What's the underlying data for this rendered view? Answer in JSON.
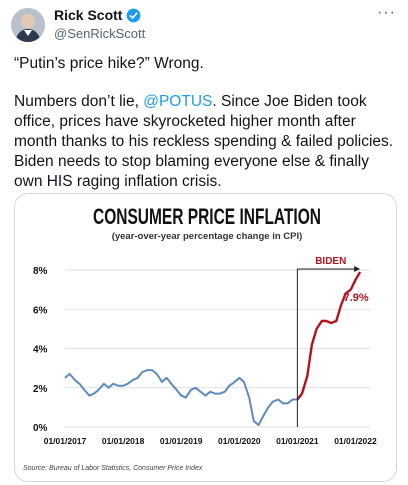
{
  "tweet": {
    "author_name": "Rick Scott",
    "handle": "@SenRickScott",
    "line1": "“Putin’s price hike?” Wrong.",
    "body_before_mention": "Numbers don’t lie, ",
    "mention": "@POTUS",
    "body_after_mention": ". Since Joe Biden took office, prices have skyrocketed higher month after month thanks to his reckless spending & failed policies. Biden needs to stop blaming everyone else & finally own HIS raging inflation crisis.",
    "more_label": "···"
  },
  "colors": {
    "line": "#5b8bbf",
    "biden_line": "#b3121f",
    "mention": "#1d9bf0",
    "verified": "#1d9bf0"
  },
  "chart_data": {
    "type": "line",
    "title": "CONSUMER PRICE INFLATION",
    "subtitle": "(year-over-year percentage change in CPI)",
    "source": "Source: Bureau of Labor Statistics, Consumer Price Index",
    "annotation": "BIDEN",
    "end_label": "7.9%",
    "ylim": [
      0,
      8
    ],
    "yticks": [
      0,
      2,
      4,
      6,
      8
    ],
    "ytick_labels": [
      "0%",
      "2%",
      "4%",
      "6%",
      "8%"
    ],
    "xlim": [
      2017.0,
      2022.25
    ],
    "xticks": [
      2017,
      2018,
      2019,
      2020,
      2021,
      2022
    ],
    "xtick_labels": [
      "01/01/2017",
      "01/01/2018",
      "01/01/2019",
      "01/01/2020",
      "01/01/2021",
      "01/01/2022"
    ],
    "biden_start": 2021.0,
    "series": [
      {
        "points": [
          [
            2017.0,
            2.5
          ],
          [
            2017.08,
            2.7
          ],
          [
            2017.17,
            2.4
          ],
          [
            2017.25,
            2.2
          ],
          [
            2017.33,
            1.9
          ],
          [
            2017.42,
            1.6
          ],
          [
            2017.5,
            1.7
          ],
          [
            2017.58,
            1.9
          ],
          [
            2017.67,
            2.2
          ],
          [
            2017.75,
            2.0
          ],
          [
            2017.83,
            2.2
          ],
          [
            2017.92,
            2.1
          ],
          [
            2018.0,
            2.1
          ],
          [
            2018.08,
            2.2
          ],
          [
            2018.17,
            2.4
          ],
          [
            2018.25,
            2.5
          ],
          [
            2018.33,
            2.8
          ],
          [
            2018.42,
            2.9
          ],
          [
            2018.5,
            2.9
          ],
          [
            2018.58,
            2.7
          ],
          [
            2018.67,
            2.3
          ],
          [
            2018.75,
            2.5
          ],
          [
            2018.83,
            2.2
          ],
          [
            2018.92,
            1.9
          ],
          [
            2019.0,
            1.6
          ],
          [
            2019.08,
            1.5
          ],
          [
            2019.17,
            1.9
          ],
          [
            2019.25,
            2.0
          ],
          [
            2019.33,
            1.8
          ],
          [
            2019.42,
            1.6
          ],
          [
            2019.5,
            1.8
          ],
          [
            2019.58,
            1.7
          ],
          [
            2019.67,
            1.7
          ],
          [
            2019.75,
            1.8
          ],
          [
            2019.83,
            2.1
          ],
          [
            2019.92,
            2.3
          ],
          [
            2020.0,
            2.5
          ],
          [
            2020.08,
            2.3
          ],
          [
            2020.17,
            1.5
          ],
          [
            2020.25,
            0.3
          ],
          [
            2020.33,
            0.1
          ],
          [
            2020.42,
            0.6
          ],
          [
            2020.5,
            1.0
          ],
          [
            2020.58,
            1.3
          ],
          [
            2020.67,
            1.4
          ],
          [
            2020.75,
            1.2
          ],
          [
            2020.83,
            1.2
          ],
          [
            2020.92,
            1.4
          ],
          [
            2021.0,
            1.4
          ],
          [
            2021.08,
            1.7
          ],
          [
            2021.17,
            2.6
          ],
          [
            2021.25,
            4.2
          ],
          [
            2021.33,
            5.0
          ],
          [
            2021.42,
            5.4
          ],
          [
            2021.5,
            5.4
          ],
          [
            2021.58,
            5.3
          ],
          [
            2021.67,
            5.4
          ],
          [
            2021.75,
            6.2
          ],
          [
            2021.83,
            6.8
          ],
          [
            2021.92,
            7.0
          ],
          [
            2022.0,
            7.5
          ],
          [
            2022.08,
            7.9
          ]
        ]
      }
    ]
  }
}
